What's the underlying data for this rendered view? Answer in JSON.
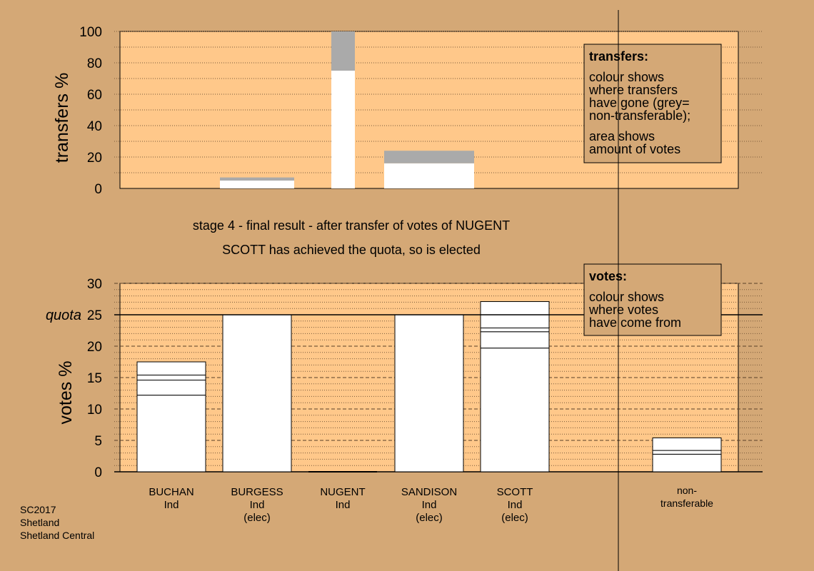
{
  "colors": {
    "background": "#d4a876",
    "plot_area": "#ffc88a",
    "bar": "#ffffff",
    "non_transferable": "#aaaaaa",
    "legend_box": "#d4a876"
  },
  "titles": {
    "line1": "stage 4 - final result - after transfer of votes of NUGENT",
    "line2": "SCOTT has achieved the quota, so is elected"
  },
  "footer": [
    "SC2017",
    "Shetland",
    "Shetland Central"
  ],
  "chart_data": [
    {
      "type": "bar",
      "name": "transfers",
      "ylabel": "transfers %",
      "ylim": [
        0,
        100
      ],
      "yticks": [
        0,
        20,
        40,
        60,
        80,
        100
      ],
      "categories": [
        "BUCHAN",
        "BURGESS",
        "NUGENT",
        "SANDISON",
        "SCOTT",
        "non-transferable"
      ],
      "stacks": [
        [],
        [
          {
            "value": 5,
            "color": "#ffffff"
          },
          {
            "value": 2,
            "color": "#aaaaaa"
          }
        ],
        [
          {
            "value": 75,
            "color": "#ffffff"
          },
          {
            "value": 25,
            "color": "#aaaaaa"
          }
        ],
        [
          {
            "value": 16,
            "color": "#ffffff"
          },
          {
            "value": 8,
            "color": "#aaaaaa"
          }
        ],
        [],
        []
      ],
      "legend": {
        "title": "transfers:",
        "lines": [
          "colour shows",
          "where transfers",
          "have gone (grey=",
          "non-transferable);",
          "area shows",
          "amount of votes"
        ]
      }
    },
    {
      "type": "bar",
      "name": "votes",
      "ylabel": "votes %",
      "ylim": [
        0,
        30
      ],
      "yticks": [
        0,
        5,
        10,
        15,
        20,
        25,
        30
      ],
      "quota": 25,
      "quota_label": "quota",
      "categories": [
        "BUCHAN",
        "BURGESS",
        "NUGENT",
        "SANDISON",
        "SCOTT",
        "non-transferable"
      ],
      "category_labels": [
        [
          "BUCHAN",
          "Ind"
        ],
        [
          "BURGESS",
          "Ind",
          "(elec)"
        ],
        [
          "NUGENT",
          "Ind"
        ],
        [
          "SANDISON",
          "Ind",
          "(elec)"
        ],
        [
          "SCOTT",
          "Ind",
          "(elec)"
        ],
        [
          "non-",
          "transferable"
        ]
      ],
      "segments": [
        [
          12.2,
          2.4,
          0.8,
          2.1
        ],
        [
          25.0
        ],
        [
          0
        ],
        [
          25.0
        ],
        [
          19.7,
          2.6,
          0.6,
          4.2
        ],
        [
          2.8,
          0.6,
          2.0
        ]
      ],
      "legend": {
        "title": "votes:",
        "lines": [
          "colour shows",
          "where votes",
          "have come from"
        ]
      }
    }
  ]
}
